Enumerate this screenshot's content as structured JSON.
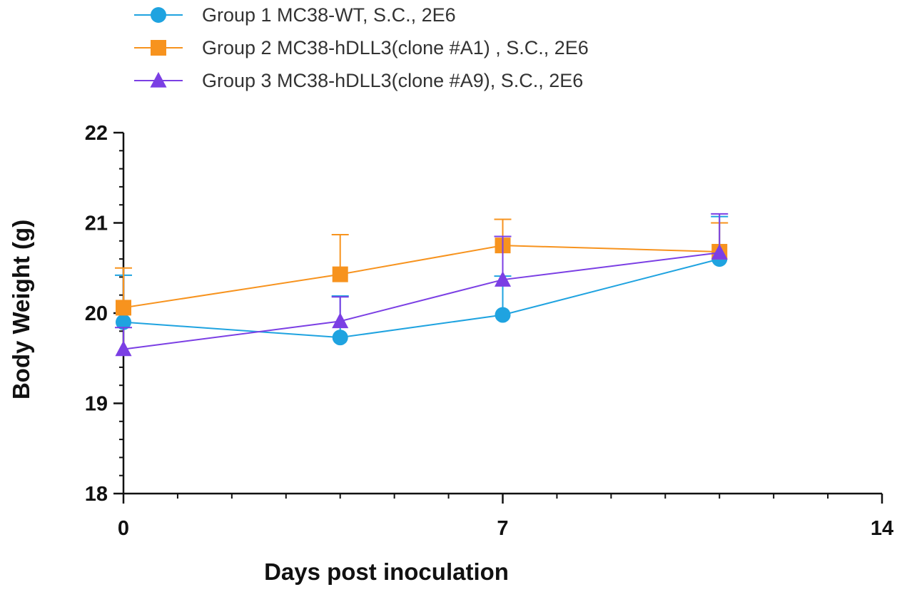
{
  "chart_data": {
    "type": "line",
    "xlabel": "Days post inoculation",
    "ylabel": "Body Weight (g)",
    "xlim": [
      0,
      14
    ],
    "ylim": [
      18,
      22
    ],
    "xticks": [
      0,
      7,
      14
    ],
    "xtick_labels": [
      "0",
      "7",
      "14"
    ],
    "yticks": [
      18,
      19,
      20,
      21,
      22
    ],
    "ytick_labels": [
      "18",
      "19",
      "20",
      "21",
      "22"
    ],
    "x_minor_step": 1,
    "y_minor_step": 0.2,
    "grid": false,
    "legend_position": "top-left, above plot",
    "error_bars": "upper only",
    "series": [
      {
        "name": "Group 1 MC38-WT, S.C., 2E6",
        "color": "#1fa3e0",
        "marker": "circle",
        "x": [
          0,
          4,
          7,
          11
        ],
        "y": [
          19.9,
          19.73,
          19.98,
          20.6
        ],
        "error_upper": [
          20.42,
          20.19,
          20.41,
          21.07
        ]
      },
      {
        "name": "Group 2 MC38-hDLL3(clone #A1) , S.C., 2E6",
        "color": "#f7931e",
        "marker": "square",
        "x": [
          0,
          4,
          7,
          11
        ],
        "y": [
          20.06,
          20.43,
          20.75,
          20.68
        ],
        "error_upper": [
          20.5,
          20.87,
          21.04,
          21.0
        ]
      },
      {
        "name": "Group 3 MC38-hDLL3(clone #A9), S.C., 2E6",
        "color": "#7b3fe4",
        "marker": "triangle",
        "x": [
          0,
          4,
          7,
          11
        ],
        "y": [
          19.6,
          19.91,
          20.37,
          20.67
        ],
        "error_upper": [
          19.84,
          20.18,
          20.85,
          21.1
        ]
      }
    ]
  }
}
